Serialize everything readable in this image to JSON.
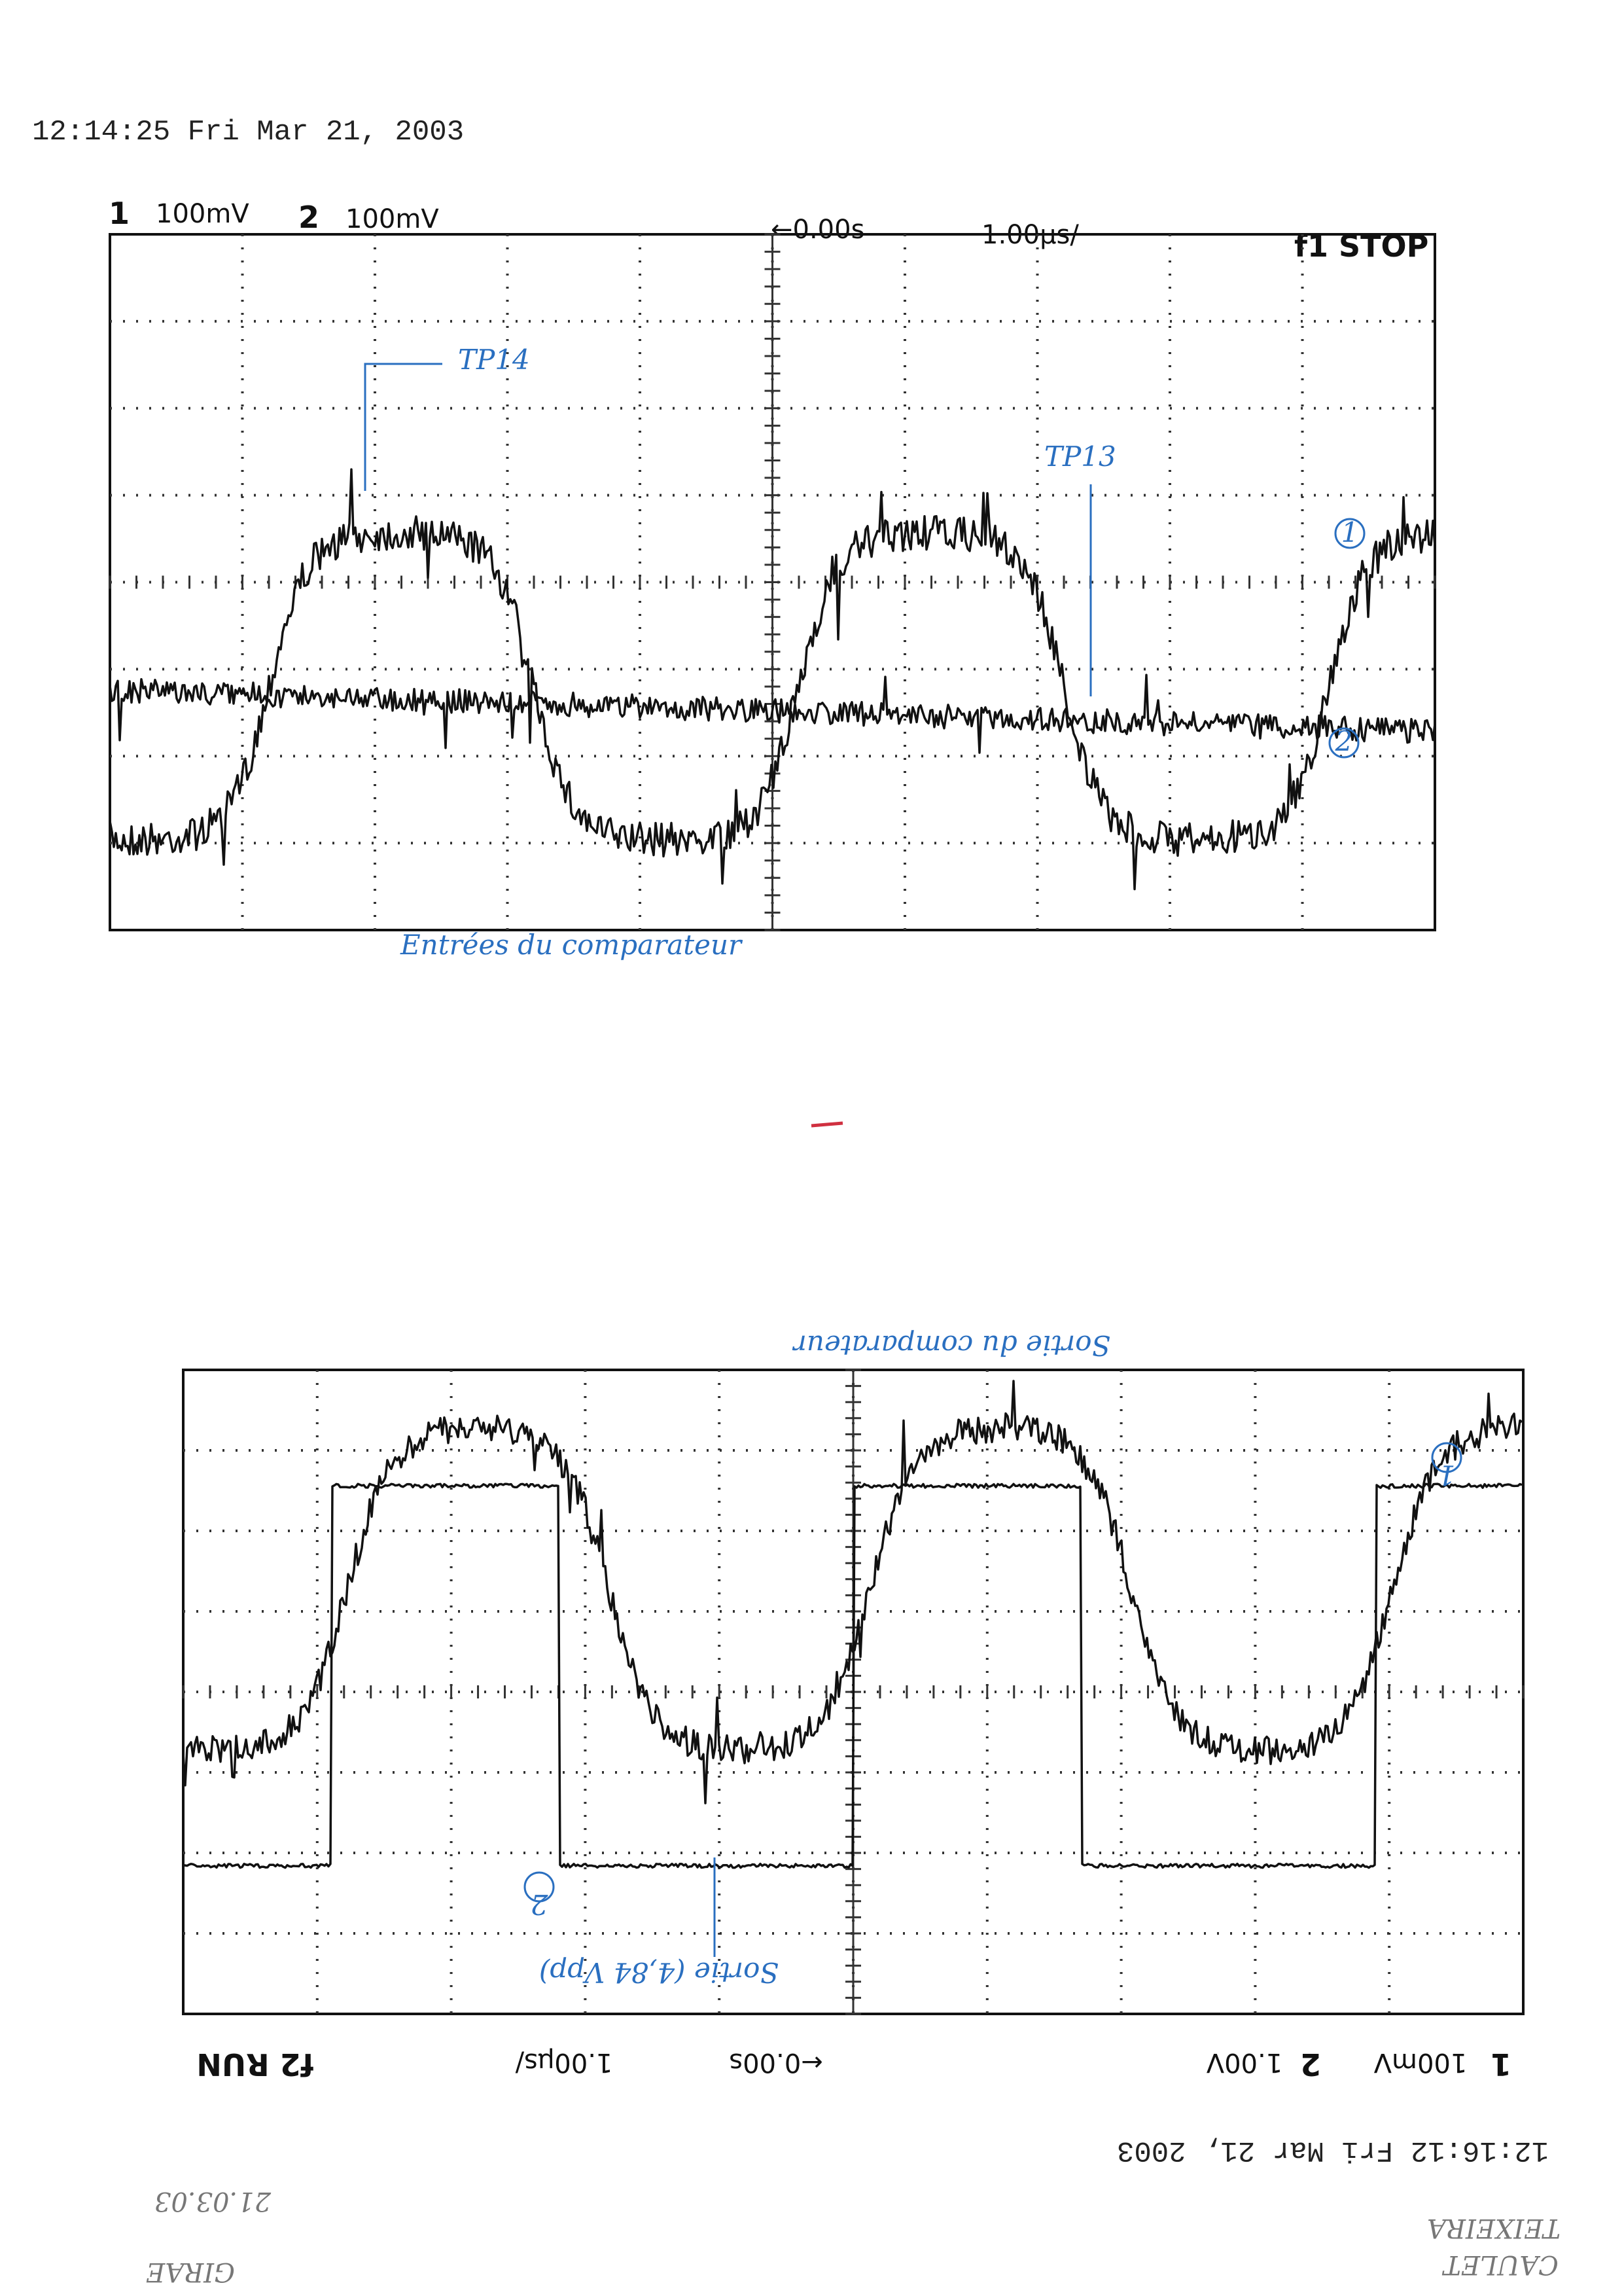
{
  "header": {
    "timestamp": "12:14:25  Fri Mar 21, 2003"
  },
  "scope1": {
    "ch1": "1",
    "ch1_scale": "100mV",
    "ch2": "2",
    "ch2_scale": "100mV",
    "delay": "←0.00s",
    "timebase": "1.00µs/",
    "status": "f1 STOP",
    "annotations": {
      "tp14": "TP14",
      "tp13": "TP13",
      "trace1": "1",
      "trace2": "2",
      "caption": "Entrées du comparateur"
    }
  },
  "scope2": {
    "ch1": "1",
    "ch1_scale": "100mV",
    "ch2": "2",
    "ch2_scale": "1.00V",
    "delay": "←0.00s",
    "timebase": "1.00µs/",
    "status": "f2 RUN",
    "timestamp": "12:16:12  Fri Mar 21, 2003",
    "annotations": {
      "caption": "Sortie du comparateur",
      "trace1": "1",
      "trace2": "2",
      "output": "Sortie (4,84 Vpp)"
    }
  },
  "footer": {
    "date": "21.03.03",
    "name1": "CAULET",
    "name2": "TEIXEIRA",
    "group": "GIRAE"
  }
}
